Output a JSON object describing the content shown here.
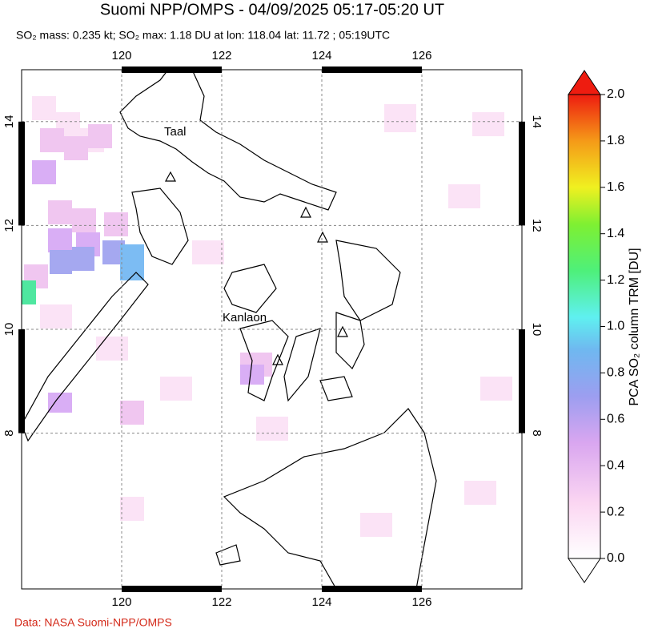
{
  "header": {
    "title": "Suomi NPP/OMPS - 04/09/2025 05:17-05:20 UT",
    "subtitle": "SO₂ mass: 0.235 kt; SO₂ max: 1.18 DU at lon: 118.04 lat: 11.72 ; 05:19UTC"
  },
  "map": {
    "lon_range": [
      118,
      128
    ],
    "lat_range": [
      5,
      15
    ],
    "lon_ticks": [
      120,
      122,
      124,
      126
    ],
    "lat_ticks": [
      14,
      12,
      10,
      8
    ],
    "volcanoes": [
      {
        "label": "Taal"
      },
      {
        "label": "Kanlaon"
      }
    ]
  },
  "colorbar": {
    "label": "PCA SO₂ column TRM [DU]",
    "ticks": [
      "0.0",
      "0.2",
      "0.4",
      "0.6",
      "0.8",
      "1.0",
      "1.2",
      "1.4",
      "1.6",
      "1.8",
      "2.0"
    ]
  },
  "footer": {
    "source": "Data: NASA Suomi-NPP/OMPS"
  }
}
